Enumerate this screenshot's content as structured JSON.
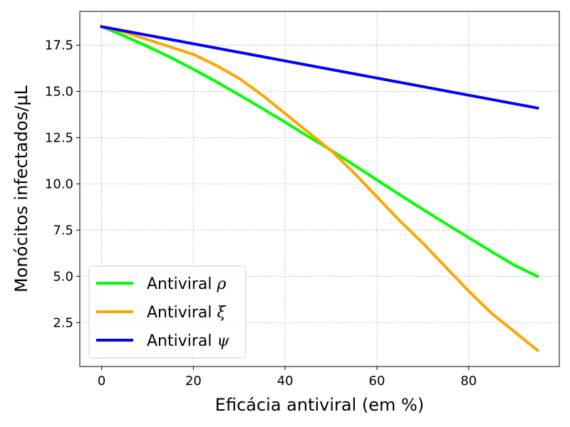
{
  "chart_data": {
    "type": "line",
    "xlabel": "Eficácia antiviral (em %)",
    "ylabel": "Monócitos infectados/μL",
    "xlim": [
      -4.75,
      99.75
    ],
    "ylim": [
      0.125,
      19.325
    ],
    "xticks": [
      0,
      20,
      40,
      60,
      80
    ],
    "xtick_labels": [
      "0",
      "20",
      "40",
      "60",
      "80"
    ],
    "yticks": [
      2.5,
      5.0,
      7.5,
      10.0,
      12.5,
      15.0,
      17.5
    ],
    "ytick_labels": [
      "2.5",
      "5.0",
      "7.5",
      "10.0",
      "12.5",
      "15.0",
      "17.5"
    ],
    "grid": true,
    "legend_position": "lower-left",
    "series": [
      {
        "name": "Antiviral ρ",
        "label_base": "Antiviral",
        "label_symbol": "ρ",
        "color": "#00ff00",
        "x": [
          0,
          5,
          10,
          15,
          20,
          25,
          30,
          35,
          40,
          45,
          50,
          55,
          60,
          65,
          70,
          75,
          80,
          85,
          90,
          95
        ],
        "y": [
          18.5,
          17.99,
          17.43,
          16.84,
          16.2,
          15.52,
          14.81,
          14.08,
          13.33,
          12.57,
          11.82,
          11.02,
          10.21,
          9.41,
          8.62,
          7.85,
          7.09,
          6.33,
          5.6,
          5.0
        ]
      },
      {
        "name": "Antiviral ξ",
        "label_base": "Antiviral",
        "label_symbol": "ξ",
        "color": "#ffa500",
        "x": [
          0,
          5,
          10,
          15,
          20,
          25,
          30,
          35,
          40,
          45,
          50,
          55,
          60,
          65,
          70,
          75,
          80,
          85,
          90,
          95
        ],
        "y": [
          18.5,
          18.2,
          17.8,
          17.4,
          17.0,
          16.4,
          15.7,
          14.8,
          13.8,
          12.8,
          11.8,
          10.6,
          9.3,
          8.0,
          6.8,
          5.5,
          4.2,
          3.0,
          2.0,
          1.0
        ]
      },
      {
        "name": "Antiviral ψ",
        "label_base": "Antiviral",
        "label_symbol": "ψ",
        "color": "#0000ff",
        "x": [
          0,
          95
        ],
        "y": [
          18.5,
          14.1
        ]
      }
    ]
  }
}
